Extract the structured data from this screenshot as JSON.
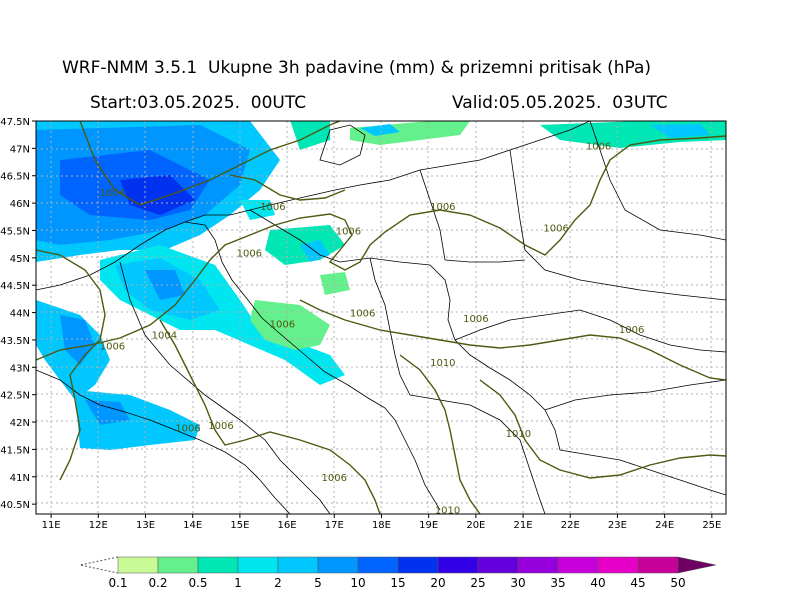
{
  "title": {
    "main": "WRF-NMM 3.5.1  Ukupne 3h padavine (mm) & prizemni pritisak (hPa)",
    "start": "Start:03.05.2025.  00UTC",
    "valid": "Valid:05.05.2025.  03UTC"
  },
  "map": {
    "lat_labels": [
      "47.5N",
      "47N",
      "46.5N",
      "46N",
      "45.5N",
      "45N",
      "44.5N",
      "44N",
      "43.5N",
      "43N",
      "42.5N",
      "42N",
      "41.5N",
      "41N",
      "40.5N"
    ],
    "lon_labels": [
      "11E",
      "12E",
      "13E",
      "14E",
      "15E",
      "16E",
      "17E",
      "18E",
      "19E",
      "20E",
      "21E",
      "22E",
      "23E",
      "24E",
      "25E"
    ],
    "isobars": [
      {
        "label": "1004",
        "lon": 12.3,
        "lat": 46.2
      },
      {
        "label": "1004",
        "lon": 13.4,
        "lat": 43.6
      },
      {
        "label": "1006",
        "lon": 12.3,
        "lat": 43.4
      },
      {
        "label": "1006",
        "lon": 15.7,
        "lat": 45.95
      },
      {
        "label": "1006",
        "lon": 15.2,
        "lat": 45.1
      },
      {
        "label": "1006",
        "lon": 15.9,
        "lat": 43.8
      },
      {
        "label": "1006",
        "lon": 13.9,
        "lat": 41.9
      },
      {
        "label": "1006",
        "lon": 14.6,
        "lat": 41.95
      },
      {
        "label": "1006",
        "lon": 17.0,
        "lat": 41.0
      },
      {
        "label": "1006",
        "lon": 17.3,
        "lat": 45.5
      },
      {
        "label": "1006",
        "lon": 19.3,
        "lat": 45.95
      },
      {
        "label": "1006",
        "lon": 22.6,
        "lat": 47.05
      },
      {
        "label": "1006",
        "lon": 21.7,
        "lat": 45.55
      },
      {
        "label": "1006",
        "lon": 20.0,
        "lat": 43.9
      },
      {
        "label": "1006",
        "lon": 17.6,
        "lat": 44.0
      },
      {
        "label": "1006",
        "lon": 23.3,
        "lat": 43.7
      },
      {
        "label": "1010",
        "lon": 19.3,
        "lat": 43.1
      },
      {
        "label": "1010",
        "lon": 20.9,
        "lat": 41.8
      },
      {
        "label": "1010",
        "lon": 19.4,
        "lat": 40.4
      }
    ],
    "colors": {
      "coast": "#000000",
      "isobar": "#4d5a10",
      "grid": "#b0b0b0"
    }
  },
  "colorbar": {
    "labels": [
      "0.1",
      "0.2",
      "0.5",
      "1",
      "2",
      "5",
      "10",
      "15",
      "20",
      "25",
      "30",
      "35",
      "40",
      "45",
      "50"
    ],
    "colors": [
      "#c8fa96",
      "#64f08c",
      "#00e6b4",
      "#00e6f0",
      "#00c8ff",
      "#0096ff",
      "#0064ff",
      "#0032f0",
      "#3200e6",
      "#6400dc",
      "#9600dc",
      "#c800dc",
      "#e600c8",
      "#c8009b",
      "#96007d",
      "#6e0064"
    ]
  }
}
